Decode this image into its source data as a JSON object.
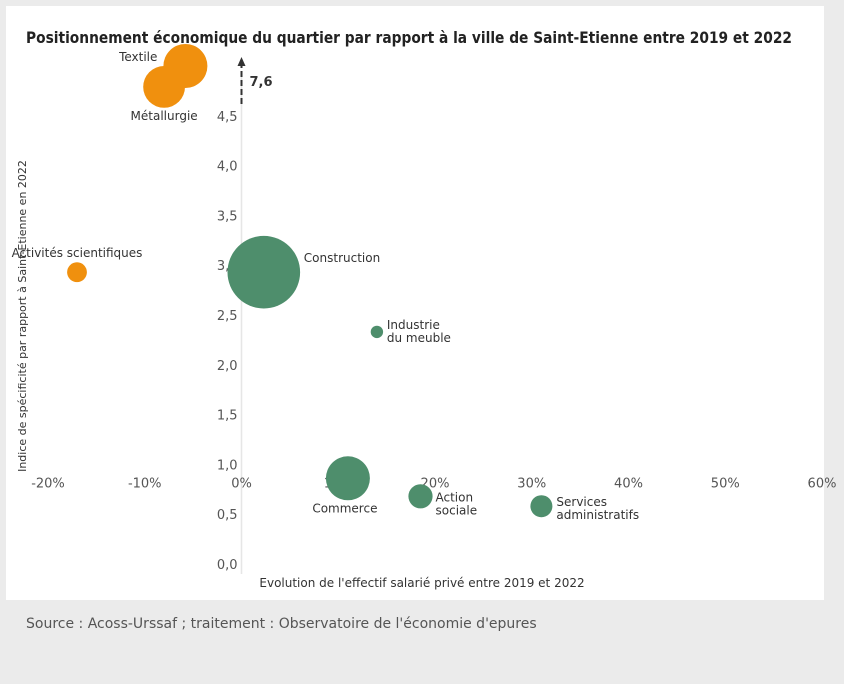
{
  "chart_data": {
    "type": "scatter",
    "title": "Positionnement économique du quartier par rapport à la ville de Saint-Etienne entre 2019 et 2022",
    "xlabel": "Evolution de l'effectif salarié privé entre 2019 et 2022",
    "ylabel": "Indice de spécificité par rapport à Saint-Etienne en 2022",
    "xlim": [
      -20,
      60
    ],
    "ylim": [
      0,
      5
    ],
    "x_axis_crosses_y_at": 1.0,
    "x_ticks": [
      "-20%",
      "-10%",
      "0%",
      "10%",
      "20%",
      "30%",
      "40%",
      "50%",
      "60%"
    ],
    "y_ticks": [
      "0,0",
      "0,5",
      "1,0",
      "1,5",
      "2,0",
      "2,5",
      "3,0",
      "3,5",
      "4,0",
      "4,5"
    ],
    "axis_break_label": "7,6",
    "grid": false,
    "colors": {
      "orange": "#f0900e",
      "green": "#4e8e6c"
    },
    "points": [
      {
        "label": "Textile",
        "x": -5.8,
        "y": 5.0,
        "size": 1.0,
        "color": "orange"
      },
      {
        "label": "Métallurgie",
        "x": -8.0,
        "y": 4.79,
        "size": 0.95,
        "color": "orange"
      },
      {
        "label": "Activités scientifiques",
        "x": -17.0,
        "y": 2.93,
        "size": 0.45,
        "color": "orange"
      },
      {
        "label": "Construction",
        "x": 2.3,
        "y": 2.93,
        "size": 1.65,
        "color": "green"
      },
      {
        "label": "Industrie du meuble",
        "x": 14.0,
        "y": 2.33,
        "size": 0.28,
        "color": "green"
      },
      {
        "label": "Commerce",
        "x": 11.0,
        "y": 0.86,
        "size": 1.0,
        "color": "green"
      },
      {
        "label": "Action sociale",
        "x": 18.5,
        "y": 0.68,
        "size": 0.55,
        "color": "green"
      },
      {
        "label": "Services administratifs",
        "x": 31.0,
        "y": 0.58,
        "size": 0.5,
        "color": "green"
      }
    ]
  },
  "source": "Source : Acoss-Urssaf ; traitement : Observatoire de l'économie d'epures"
}
